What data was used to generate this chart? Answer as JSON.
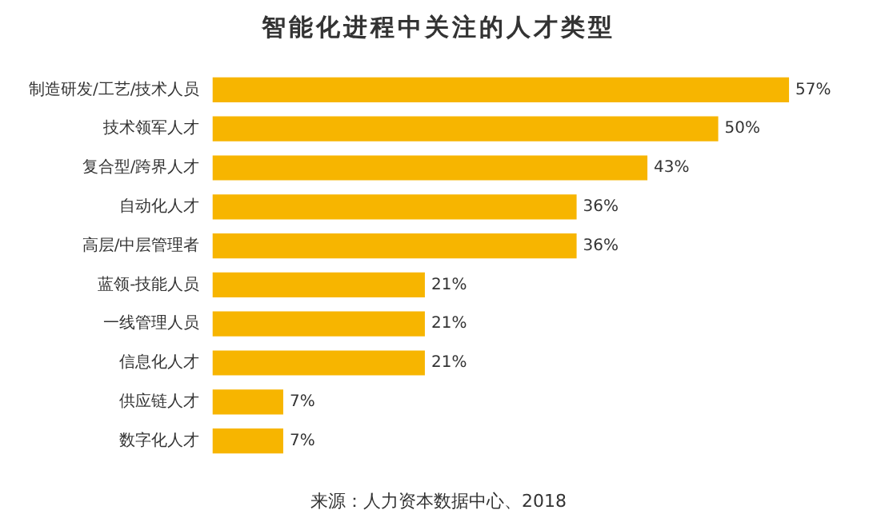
{
  "chart_data": {
    "type": "bar",
    "orientation": "horizontal",
    "title": "智能化进程中关注的人才类型",
    "categories": [
      "制造研发/工艺/技术人员",
      "技术领军人才",
      "复合型/跨界人才",
      "自动化人才",
      "高层/中层管理者",
      "蓝领-技能人员",
      "一线管理人员",
      "信息化人才",
      "供应链人才",
      "数字化人才"
    ],
    "values": [
      57,
      50,
      43,
      36,
      36,
      21,
      21,
      21,
      7,
      7
    ],
    "value_labels": [
      "57%",
      "50%",
      "43%",
      "36%",
      "36%",
      "21%",
      "21%",
      "21%",
      "7%",
      "7%"
    ],
    "color": "#f7b500",
    "grid": false,
    "legend": false,
    "annotations": [
      "来源：人力资本数据中心、2018"
    ]
  }
}
